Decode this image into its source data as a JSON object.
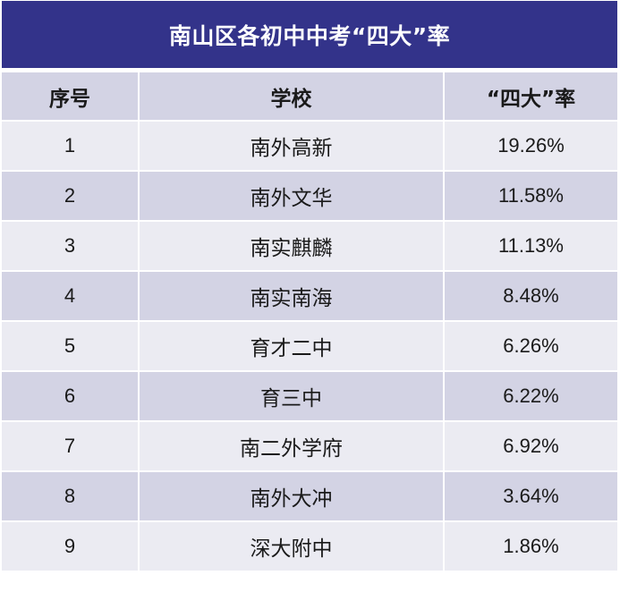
{
  "title": "南山区各初中中考“四大”率",
  "headers": {
    "rank": "序号",
    "school": "学校",
    "rate": "“四大”率"
  },
  "rows": [
    {
      "rank": "1",
      "school": "南外高新",
      "rate": "19.26%"
    },
    {
      "rank": "2",
      "school": "南外文华",
      "rate": "11.58%"
    },
    {
      "rank": "3",
      "school": "南实麒麟",
      "rate": "11.13%"
    },
    {
      "rank": "4",
      "school": "南实南海",
      "rate": "8.48%"
    },
    {
      "rank": "5",
      "school": "育才二中",
      "rate": "6.26%"
    },
    {
      "rank": "6",
      "school": "育三中",
      "rate": "6.22%"
    },
    {
      "rank": "7",
      "school": "南二外学府",
      "rate": "6.92%"
    },
    {
      "rank": "8",
      "school": "南外大冲",
      "rate": "3.64%"
    },
    {
      "rank": "9",
      "school": "深大附中",
      "rate": "1.86%"
    }
  ],
  "colors": {
    "title_bg": "#33338a",
    "title_text": "#ffffff",
    "header_bg": "#d3d3e4",
    "row_light": "#ebebf2",
    "row_dark": "#d3d3e4"
  }
}
